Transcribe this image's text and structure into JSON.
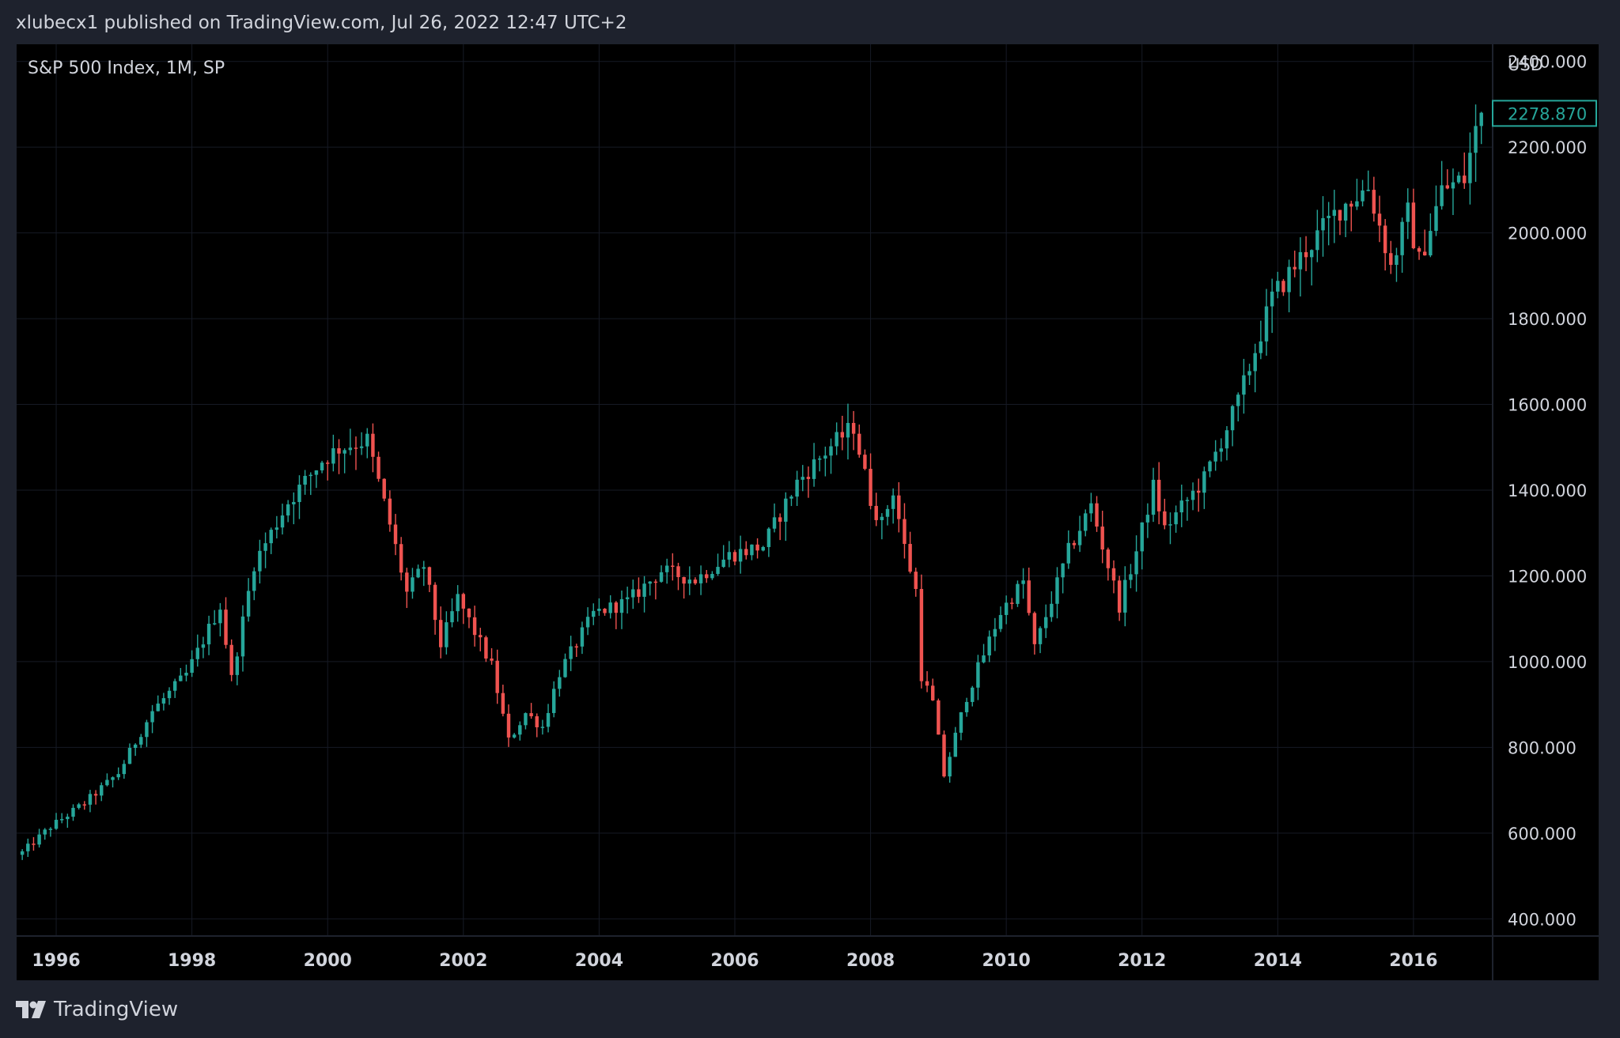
{
  "header": {
    "published_line": "xlubecx1 published on TradingView.com, Jul 26, 2022 12:47 UTC+2"
  },
  "footer": {
    "brand": "TradingView"
  },
  "colors": {
    "up": "#26a69a",
    "down": "#ef5350",
    "background": "#000000",
    "frame": "#1e222d",
    "grid": "#161a25",
    "text": "#d1d4dc"
  },
  "chart_data": {
    "type": "candlestick",
    "legend": "S&P 500 Index, 1M, SP",
    "currency": "USD",
    "last_value": "2278.870",
    "timeframe": "1M",
    "y_ticks": [
      "2400.000",
      "2200.000",
      "2000.000",
      "1800.000",
      "1600.000",
      "1400.000",
      "1200.000",
      "1000.000",
      "800.000",
      "600.000",
      "400.000"
    ],
    "x_ticks": [
      "1996",
      "1998",
      "2000",
      "2002",
      "2004",
      "2006",
      "2008",
      "2010",
      "2012",
      "2014",
      "2016"
    ],
    "x_range": [
      "1995-06",
      "2017-03"
    ],
    "ylim": [
      360,
      2440
    ],
    "grid": true,
    "anchors": [
      [
        "1995-07",
        555
      ],
      [
        "1995-12",
        615
      ],
      [
        "1996-06",
        670
      ],
      [
        "1996-12",
        740
      ],
      [
        "1997-06",
        885
      ],
      [
        "1997-12",
        970
      ],
      [
        "1998-06",
        1130
      ],
      [
        "1998-08",
        960
      ],
      [
        "1998-12",
        1229
      ],
      [
        "1999-06",
        1372
      ],
      [
        "1999-12",
        1469
      ],
      [
        "2000-03",
        1498
      ],
      [
        "2000-08",
        1517
      ],
      [
        "2000-12",
        1320
      ],
      [
        "2001-03",
        1160
      ],
      [
        "2001-06",
        1224
      ],
      [
        "2001-09",
        1040
      ],
      [
        "2001-12",
        1148
      ],
      [
        "2002-06",
        990
      ],
      [
        "2002-09",
        815
      ],
      [
        "2002-12",
        880
      ],
      [
        "2003-03",
        848
      ],
      [
        "2003-06",
        975
      ],
      [
        "2003-12",
        1112
      ],
      [
        "2004-06",
        1140
      ],
      [
        "2004-12",
        1212
      ],
      [
        "2005-06",
        1191
      ],
      [
        "2005-12",
        1248
      ],
      [
        "2006-06",
        1270
      ],
      [
        "2006-12",
        1418
      ],
      [
        "2007-06",
        1503
      ],
      [
        "2007-10",
        1549
      ],
      [
        "2008-01",
        1378
      ],
      [
        "2008-03",
        1322
      ],
      [
        "2008-05",
        1400
      ],
      [
        "2008-07",
        1267
      ],
      [
        "2008-09",
        1166
      ],
      [
        "2008-10",
        968
      ],
      [
        "2008-12",
        903
      ],
      [
        "2009-02",
        735
      ],
      [
        "2009-06",
        919
      ],
      [
        "2009-12",
        1115
      ],
      [
        "2010-04",
        1187
      ],
      [
        "2010-06",
        1031
      ],
      [
        "2010-12",
        1258
      ],
      [
        "2011-04",
        1364
      ],
      [
        "2011-09",
        1131
      ],
      [
        "2011-12",
        1258
      ],
      [
        "2012-03",
        1408
      ],
      [
        "2012-05",
        1310
      ],
      [
        "2012-12",
        1426
      ],
      [
        "2013-06",
        1606
      ],
      [
        "2013-12",
        1848
      ],
      [
        "2014-06",
        1960
      ],
      [
        "2014-12",
        2059
      ],
      [
        "2015-05",
        2107
      ],
      [
        "2015-08",
        1972
      ],
      [
        "2015-09",
        1920
      ],
      [
        "2015-12",
        2044
      ],
      [
        "2016-02",
        1932
      ],
      [
        "2016-06",
        2099
      ],
      [
        "2016-10",
        2126
      ],
      [
        "2016-12",
        2239
      ],
      [
        "2017-01",
        2279
      ]
    ]
  }
}
